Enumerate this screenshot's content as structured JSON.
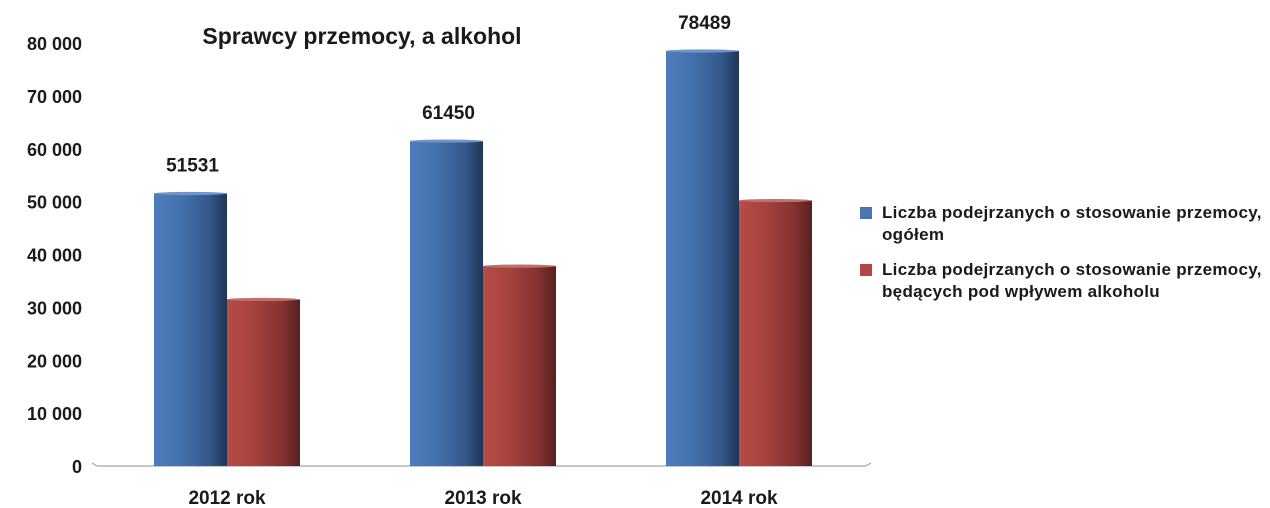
{
  "chart_data": {
    "type": "bar",
    "title": "Sprawcy przemocy, a alkohol",
    "categories": [
      "2012 rok",
      "2013 rok",
      "2014 rok"
    ],
    "series": [
      {
        "name": "Liczba podejrzanych o stosowanie przemocy, ogółem",
        "color": "#4a76b1",
        "values": [
          51531,
          61450,
          78489
        ],
        "data_labels": [
          "51531",
          "61450",
          "78489"
        ]
      },
      {
        "name": "Liczba podejrzanych o stosowanie przemocy, będących pod wpływem alkoholu",
        "color": "#b04744",
        "values": [
          31500,
          37800,
          50200
        ]
      }
    ],
    "ylim": [
      0,
      80000
    ],
    "yticks": [
      "0",
      "10 000",
      "20 000",
      "30 000",
      "40 000",
      "50 000",
      "60 000",
      "70 000",
      "80 000"
    ],
    "grid": false,
    "legend": "right"
  }
}
